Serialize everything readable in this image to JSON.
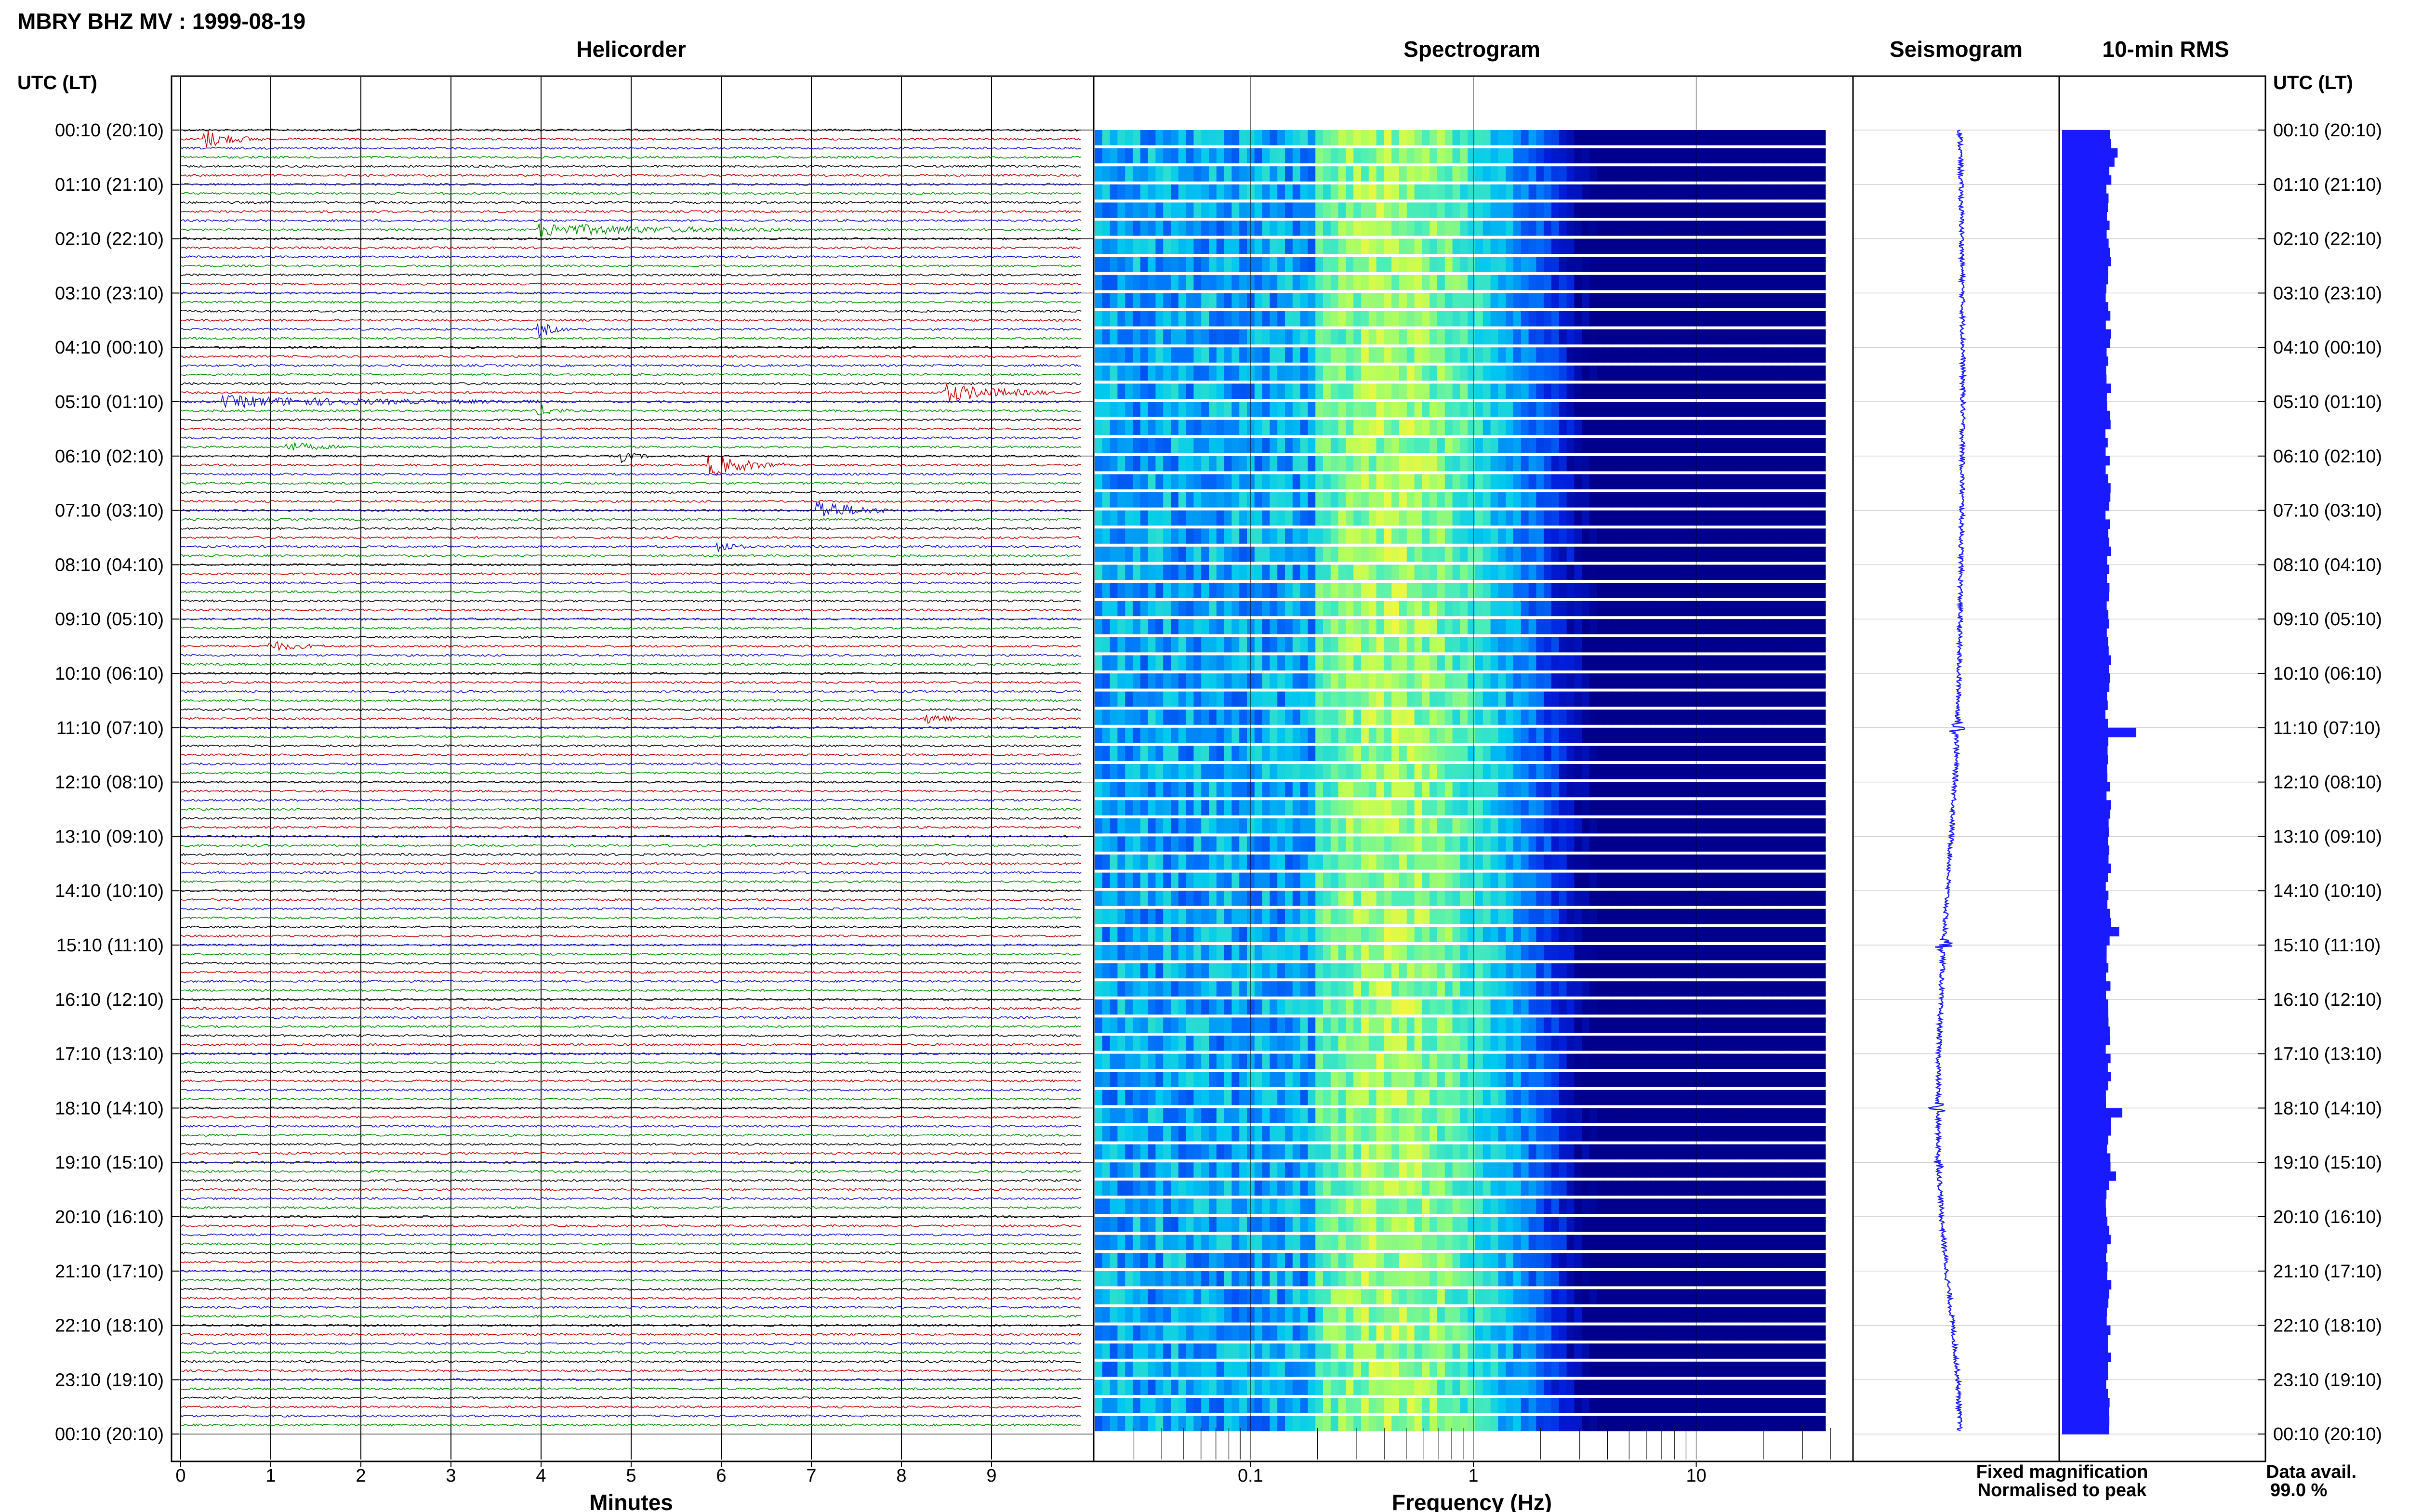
{
  "header": {
    "title": "MBRY BHZ MV : 1999-08-19"
  },
  "panels": {
    "helicorder": "Helicorder",
    "spectrogram": "Spectrogram",
    "seismogram": "Seismogram",
    "rms": "10-min RMS"
  },
  "axes": {
    "time_axis_label": "UTC (LT)",
    "minutes_label": "Minutes",
    "frequency_label": "Frequency (Hz)"
  },
  "legend": {
    "fixed": "Fixed magnification",
    "fixed_color": "#1010ee",
    "normalised": "Normalised to peak",
    "normalised_color": "#ee1010",
    "avail_label": "Data avail.",
    "avail_value": "99.0 %"
  },
  "colors": {
    "trace_cycle": [
      "#000000",
      "#c00000",
      "#1010c8",
      "#009000"
    ],
    "seismogram": "#1a1aff",
    "rms_bar": "#1a1aff",
    "spectrogram_low": "#00008c",
    "spectrogram_high": "#b4ff60"
  },
  "chart_data": [
    {
      "type": "line",
      "name": "helicorder",
      "title": "Helicorder",
      "xlabel": "Minutes",
      "xlim": [
        0,
        10
      ],
      "x_ticks": [
        "0",
        "1",
        "2",
        "3",
        "4",
        "5",
        "6",
        "7",
        "8",
        "9"
      ],
      "rows_per_hour": 6,
      "row_minutes": 10,
      "time_labels": [
        "00:10 (20:10)",
        "01:10 (21:10)",
        "02:10 (22:10)",
        "03:10 (23:10)",
        "04:10 (00:10)",
        "05:10 (01:10)",
        "06:10 (02:10)",
        "07:10 (03:10)",
        "08:10 (04:10)",
        "09:10 (05:10)",
        "10:10 (06:10)",
        "11:10 (07:10)",
        "12:10 (08:10)",
        "13:10 (09:10)",
        "14:10 (10:10)",
        "15:10 (11:10)",
        "16:10 (12:10)",
        "17:10 (13:10)",
        "18:10 (14:10)",
        "19:10 (15:10)",
        "20:10 (16:10)",
        "21:10 (17:10)",
        "22:10 (18:10)",
        "23:10 (19:10)",
        "00:10 (20:10)"
      ],
      "events": [
        {
          "row": 1,
          "minute": 0.3,
          "strength": 2.5,
          "duration": 0.6
        },
        {
          "row": 11,
          "minute": 4.0,
          "strength": 1.8,
          "duration": 2.8
        },
        {
          "row": 22,
          "minute": 4.0,
          "strength": 2.0,
          "duration": 0.3
        },
        {
          "row": 29,
          "minute": 8.5,
          "strength": 2.6,
          "duration": 1.2
        },
        {
          "row": 30,
          "minute": 0.5,
          "strength": 1.6,
          "duration": 3.5
        },
        {
          "row": 31,
          "minute": 4.0,
          "strength": 1.6,
          "duration": 0.3
        },
        {
          "row": 35,
          "minute": 1.2,
          "strength": 1.4,
          "duration": 0.6
        },
        {
          "row": 36,
          "minute": 4.9,
          "strength": 1.6,
          "duration": 0.3
        },
        {
          "row": 37,
          "minute": 5.9,
          "strength": 3.2,
          "duration": 0.8
        },
        {
          "row": 42,
          "minute": 7.1,
          "strength": 3.0,
          "duration": 0.8
        },
        {
          "row": 46,
          "minute": 6.0,
          "strength": 1.6,
          "duration": 0.3
        },
        {
          "row": 57,
          "minute": 1.0,
          "strength": 1.4,
          "duration": 0.6
        },
        {
          "row": 65,
          "minute": 8.3,
          "strength": 1.8,
          "duration": 0.4
        }
      ]
    },
    {
      "type": "heatmap",
      "name": "spectrogram",
      "title": "Spectrogram",
      "xlabel": "Frequency (Hz)",
      "x_scale": "log",
      "xlim": [
        0.02,
        50
      ],
      "x_ticks": [
        "0.1",
        "1",
        "10"
      ],
      "peak_frequency_hz": 0.45,
      "rows": 72
    },
    {
      "type": "line",
      "name": "seismogram",
      "title": "Seismogram",
      "hourly_offset": [
        0.0,
        0.02,
        0.04,
        0.05,
        0.06,
        0.06,
        0.05,
        0.04,
        0.02,
        0.0,
        -0.02,
        -0.05,
        -0.1,
        -0.18,
        -0.26,
        -0.34,
        -0.4,
        -0.44,
        -0.46,
        -0.44,
        -0.38,
        -0.28,
        -0.15,
        -0.04,
        0.0
      ],
      "spikes": [
        {
          "hour": 11,
          "amplitude": 2.0
        },
        {
          "hour": 15,
          "amplitude": 1.6
        },
        {
          "hour": 18,
          "amplitude": 1.8
        },
        {
          "hour": 19,
          "amplitude": 1.2
        }
      ]
    },
    {
      "type": "bar",
      "name": "rms",
      "title": "10-min RMS",
      "orientation": "horizontal",
      "bins": 144,
      "base_level": 0.3,
      "peaks": [
        {
          "bin": 2,
          "value": 0.36
        },
        {
          "bin": 3,
          "value": 0.34
        },
        {
          "bin": 66,
          "value": 0.48
        },
        {
          "bin": 88,
          "value": 0.37
        },
        {
          "bin": 108,
          "value": 0.39
        },
        {
          "bin": 115,
          "value": 0.35
        }
      ]
    }
  ]
}
